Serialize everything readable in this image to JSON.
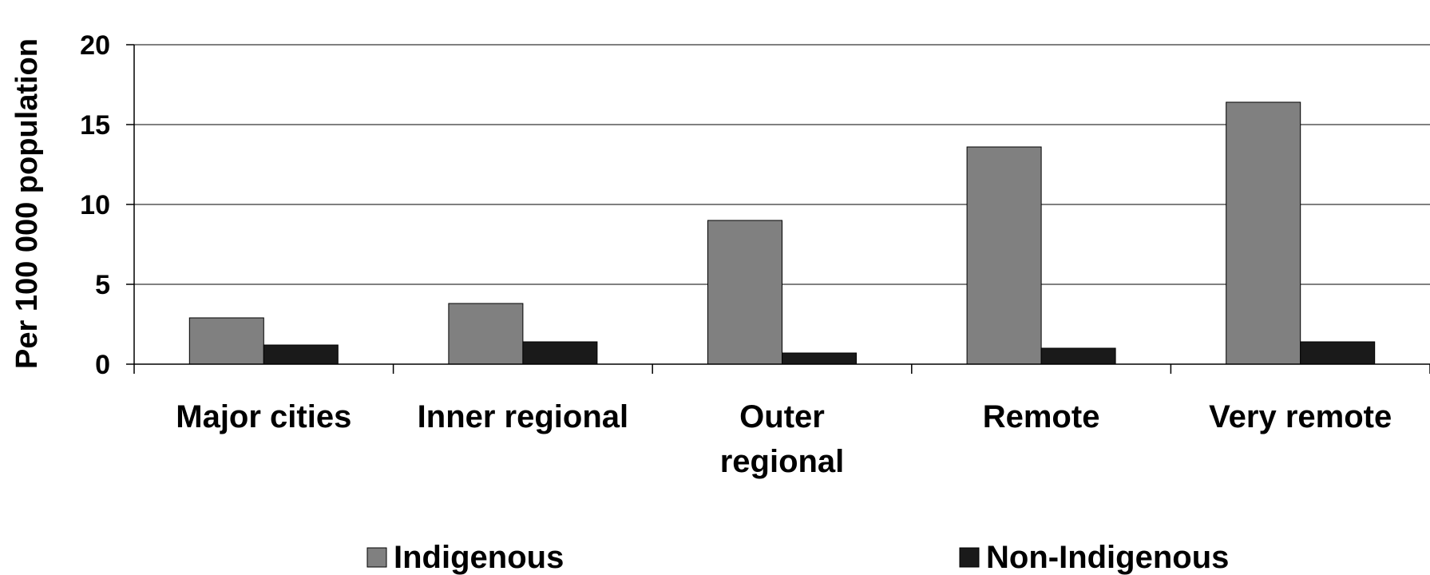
{
  "chart_data": {
    "type": "bar",
    "categories": [
      "Major cities",
      "Inner regional",
      "Outer regional",
      "Remote",
      "Very remote"
    ],
    "category_lines": [
      [
        "Major cities"
      ],
      [
        "Inner regional"
      ],
      [
        "Outer",
        "regional"
      ],
      [
        "Remote"
      ],
      [
        "Very remote"
      ]
    ],
    "series": [
      {
        "name": "Indigenous",
        "values": [
          2.9,
          3.8,
          9.0,
          13.6,
          16.4
        ],
        "color": "#808080"
      },
      {
        "name": "Non-Indigenous",
        "values": [
          1.2,
          1.4,
          0.7,
          1.0,
          1.4
        ],
        "color": "#1a1a1a"
      }
    ],
    "ylabel": "Per 100 000 population",
    "xlabel": "",
    "ylim": [
      0,
      20
    ],
    "yticks": [
      0,
      5,
      10,
      15,
      20
    ],
    "grid": true,
    "legend_position": "bottom"
  }
}
